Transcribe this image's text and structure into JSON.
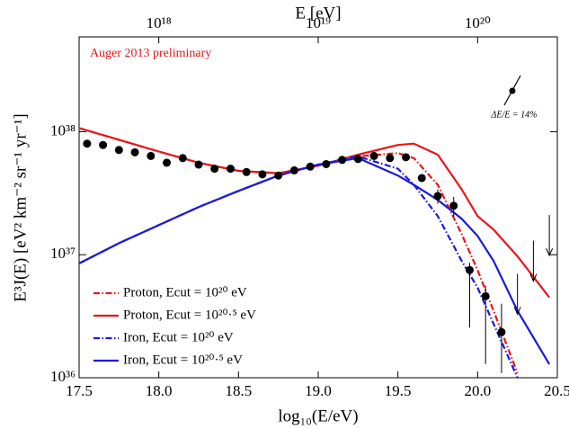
{
  "chart_data": {
    "type": "line",
    "annotation": "Auger 2013 preliminary",
    "resolution_label": "ΔE/E = 14%",
    "xlabel": "log₁₀(E/eV)",
    "x2label": "E [eV]",
    "ylabel": "E³J(E) [eV² km⁻² sr⁻¹ yr⁻¹]",
    "xlim": [
      17.5,
      20.5
    ],
    "xticks": [
      17.5,
      {
        "value": 18,
        "label": "18.0"
      },
      18.5,
      {
        "value": 19,
        "label": "19.0"
      },
      19.5,
      {
        "value": 20,
        "label": "20.0"
      },
      20.5
    ],
    "x2ticks": [
      {
        "value": 18,
        "label": "10¹⁸"
      },
      {
        "value": 19,
        "label": "10¹⁹"
      },
      {
        "value": 20,
        "label": "10²⁰"
      }
    ],
    "ylim": [
      1e+36,
      5.9e+38
    ],
    "yticks": [
      {
        "value": 1e+36,
        "label": "10³⁶"
      },
      {
        "value": 1e+37,
        "label": "10³⁷"
      },
      {
        "value": 1e+38,
        "label": "10³⁸"
      }
    ],
    "log_y": true,
    "legend": "lower left",
    "x": [
      17.5,
      17.75,
      18.0,
      18.25,
      18.5,
      18.75,
      19.0,
      19.25,
      19.5,
      19.6,
      19.75,
      19.9,
      20.0,
      20.1,
      20.25,
      20.45
    ],
    "series": [
      {
        "name": "Proton, Ecut = 10²⁰ eV",
        "color": "#e8161b",
        "dash": "dashdot",
        "values": [
          1.07e+38,
          8.6e+37,
          6.9e+37,
          5.6e+37,
          4.8e+37,
          4.6e+37,
          5.3e+37,
          6.3e+37,
          6.7e+37,
          6.1e+37,
          3.7e+37,
          1.47e+37,
          7.5e+36,
          3.5e+36,
          1.09e+36,
          null
        ]
      },
      {
        "name": "Proton, Ecut = 10²⁰·⁵ eV",
        "color": "#e8161b",
        "dash": "solid",
        "values": [
          1.07e+38,
          8.6e+37,
          6.9e+37,
          5.6e+37,
          4.8e+37,
          4.6e+37,
          5.3e+37,
          6.5e+37,
          7.8e+37,
          8e+37,
          6.5e+37,
          3.4e+37,
          2.06e+37,
          1.6e+37,
          9.7e+36,
          4.5e+36
        ]
      },
      {
        "name": "Iron, Ecut = 10²⁰ eV",
        "color": "#1a1adc",
        "dash": "dashdot",
        "values": [
          8.5e+36,
          1.24e+37,
          1.74e+37,
          2.44e+37,
          3.3e+37,
          4.4e+37,
          5.4e+37,
          6.3e+37,
          5e+37,
          3.7e+37,
          2.06e+37,
          8.9e+36,
          5.4e+36,
          2.74e+36,
          1e+36,
          null
        ]
      },
      {
        "name": "Iron, Ecut = 10²⁰·⁵ eV",
        "color": "#1a1adc",
        "dash": "solid",
        "values": [
          8.5e+36,
          1.24e+37,
          1.74e+37,
          2.44e+37,
          3.3e+37,
          4.4e+37,
          5.4e+37,
          6.1e+37,
          4.4e+37,
          3.7e+37,
          2.79e+37,
          1.96e+37,
          1.42e+37,
          8.9e+36,
          3.5e+36,
          1.29e+36
        ]
      }
    ],
    "points": {
      "color": "#000000",
      "x": [
        17.55,
        17.65,
        17.75,
        17.85,
        17.95,
        18.05,
        18.15,
        18.25,
        18.35,
        18.45,
        18.55,
        18.65,
        18.75,
        18.85,
        18.95,
        19.05,
        19.15,
        19.25,
        19.35,
        19.45,
        19.55,
        19.65,
        19.75,
        19.85,
        19.95,
        20.05,
        20.15
      ],
      "values": [
        8e+37,
        7.8e+37,
        7.1e+37,
        6.8e+37,
        6.35e+37,
        5.6e+37,
        6.1e+37,
        5.4e+37,
        5e+37,
        5e+37,
        4.7e+37,
        4.5e+37,
        4.4e+37,
        4.85e+37,
        5.2e+37,
        5.45e+37,
        5.9e+37,
        6e+37,
        6.35e+37,
        6.1e+37,
        6.2e+37,
        4.2e+37,
        3e+37,
        2.5e+37,
        7.5e+36,
        4.6e+36,
        2.35e+36
      ],
      "err_low": [
        null,
        null,
        null,
        null,
        null,
        null,
        null,
        null,
        null,
        null,
        null,
        null,
        null,
        null,
        null,
        null,
        null,
        null,
        null,
        null,
        null,
        null,
        2.6e+37,
        2.05e+37,
        2.56e+36,
        1.29e+36,
        1.09e+36
      ],
      "err_high": [
        null,
        null,
        null,
        null,
        null,
        null,
        null,
        null,
        null,
        null,
        null,
        null,
        null,
        null,
        null,
        null,
        null,
        null,
        null,
        null,
        null,
        null,
        3.4e+37,
        2.95e+37,
        8.6e+36,
        5.6e+36,
        4e+36
      ]
    },
    "upper_limits": {
      "x": [
        20.25,
        20.35,
        20.45
      ],
      "values": [
        7e+36,
        1.3e+37,
        2.1e+37
      ]
    }
  }
}
